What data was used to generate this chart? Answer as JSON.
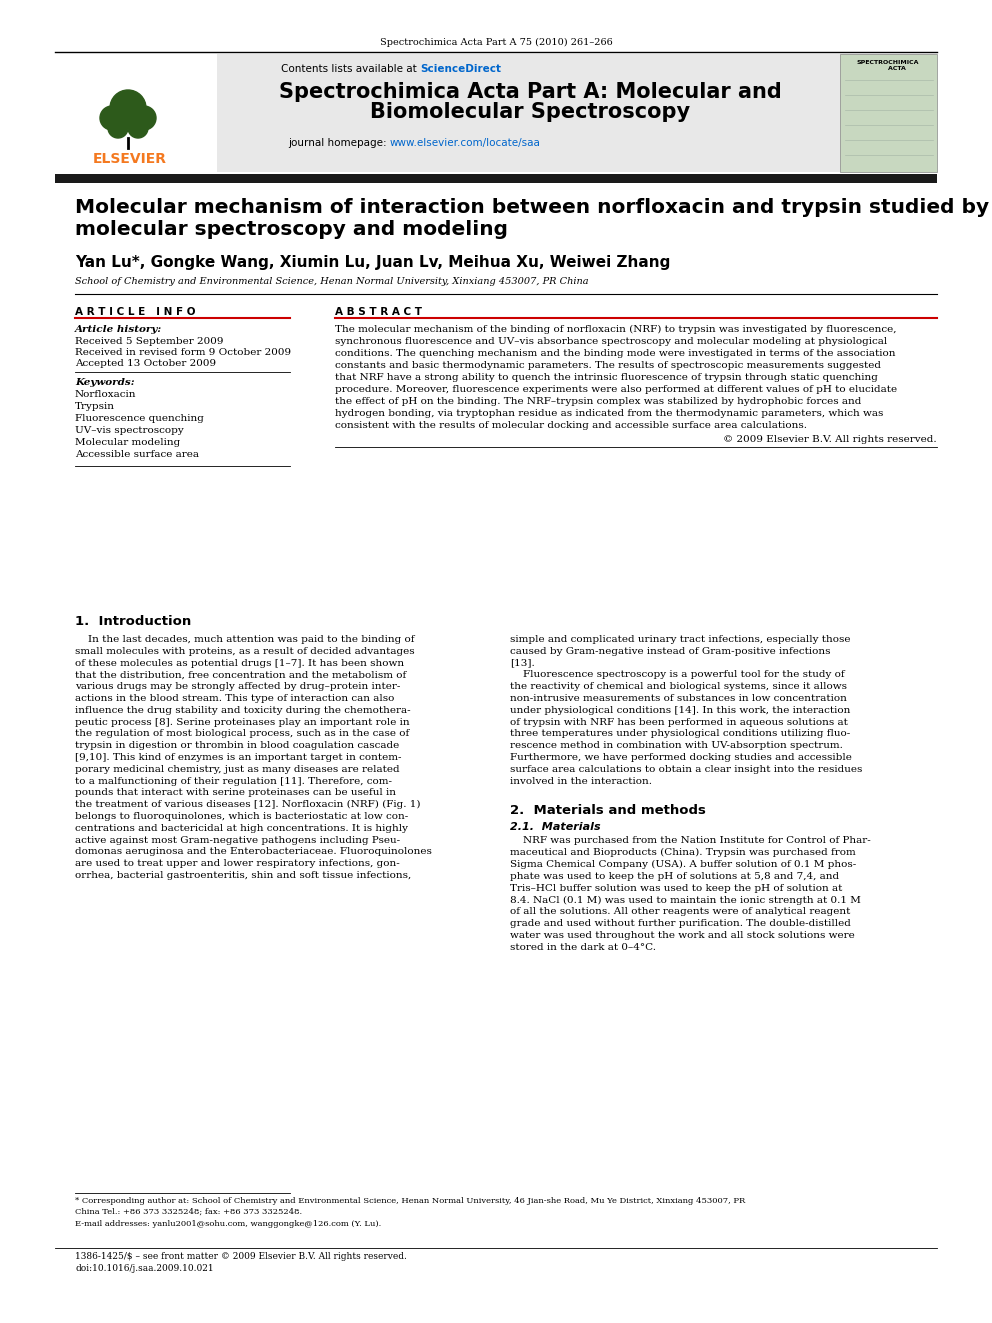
{
  "journal_ref": "Spectrochimica Acta Part A 75 (2010) 261–266",
  "journal_name_line1": "Spectrochimica Acta Part A: Molecular and",
  "journal_name_line2": "Biomolecular Spectroscopy",
  "paper_title_line1": "Molecular mechanism of interaction between norfloxacin and trypsin studied by",
  "paper_title_line2": "molecular spectroscopy and modeling",
  "authors": "Yan Lu*, Gongke Wang, Xiumin Lu, Juan Lv, Meihua Xu, Weiwei Zhang",
  "affiliation": "School of Chemistry and Environmental Science, Henan Normal University, Xinxiang 453007, PR China",
  "article_info_header": "A R T I C L E   I N F O",
  "abstract_header": "A B S T R A C T",
  "article_history_header": "Article history:",
  "received1": "Received 5 September 2009",
  "received_revised": "Received in revised form 9 October 2009",
  "accepted": "Accepted 13 October 2009",
  "keywords_header": "Keywords:",
  "keywords": [
    "Norfloxacin",
    "Trypsin",
    "Fluorescence quenching",
    "UV–vis spectroscopy",
    "Molecular modeling",
    "Accessible surface area"
  ],
  "abstract_lines": [
    "The molecular mechanism of the binding of norfloxacin (NRF) to trypsin was investigated by fluorescence,",
    "synchronous fluorescence and UV–vis absorbance spectroscopy and molecular modeling at physiological",
    "conditions. The quenching mechanism and the binding mode were investigated in terms of the association",
    "constants and basic thermodynamic parameters. The results of spectroscopic measurements suggested",
    "that NRF have a strong ability to quench the intrinsic fluorescence of trypsin through static quenching",
    "procedure. Moreover, fluorescence experiments were also performed at different values of pH to elucidate",
    "the effect of pH on the binding. The NRF–trypsin complex was stabilized by hydrophobic forces and",
    "hydrogen bonding, via tryptophan residue as indicated from the thermodynamic parameters, which was",
    "consistent with the results of molecular docking and accessible surface area calculations."
  ],
  "copyright": "© 2009 Elsevier B.V. All rights reserved.",
  "section1_header": "1.  Introduction",
  "intro_left_lines": [
    "    In the last decades, much attention was paid to the binding of",
    "small molecules with proteins, as a result of decided advantages",
    "of these molecules as potential drugs [1–7]. It has been shown",
    "that the distribution, free concentration and the metabolism of",
    "various drugs may be strongly affected by drug–protein inter-",
    "actions in the blood stream. This type of interaction can also",
    "influence the drug stability and toxicity during the chemothera-",
    "peutic process [8]. Serine proteinases play an important role in",
    "the regulation of most biological process, such as in the case of",
    "trypsin in digestion or thrombin in blood coagulation cascade",
    "[9,10]. This kind of enzymes is an important target in contem-",
    "porary medicinal chemistry, just as many diseases are related",
    "to a malfunctioning of their regulation [11]. Therefore, com-",
    "pounds that interact with serine proteinases can be useful in",
    "the treatment of various diseases [12]. Norfloxacin (NRF) (Fig. 1)",
    "belongs to fluoroquinolones, which is bacteriostatic at low con-",
    "centrations and bactericidal at high concentrations. It is highly",
    "active against most Gram-negative pathogens including Pseu-",
    "domonas aeruginosa and the Enterobacteriaceae. Fluoroquinolones",
    "are used to treat upper and lower respiratory infections, gon-",
    "orrhea, bacterial gastroenteritis, shin and soft tissue infections,"
  ],
  "intro_right_lines": [
    "simple and complicated urinary tract infections, especially those",
    "caused by Gram-negative instead of Gram-positive infections",
    "[13].",
    "    Fluorescence spectroscopy is a powerful tool for the study of",
    "the reactivity of chemical and biological systems, since it allows",
    "non-intrusive measurements of substances in low concentration",
    "under physiological conditions [14]. In this work, the interaction",
    "of trypsin with NRF has been performed in aqueous solutions at",
    "three temperatures under physiological conditions utilizing fluo-",
    "rescence method in combination with UV-absorption spectrum.",
    "Furthermore, we have performed docking studies and accessible",
    "surface area calculations to obtain a clear insight into the residues",
    "involved in the interaction."
  ],
  "section2_header": "2.  Materials and methods",
  "section21_header": "2.1.  Materials",
  "materials_lines": [
    "    NRF was purchased from the Nation Institute for Control of Phar-",
    "maceutical and Bioproducts (China). Trypsin was purchased from",
    "Sigma Chemical Company (USA). A buffer solution of 0.1 M phos-",
    "phate was used to keep the pH of solutions at 5,8 and 7,4, and",
    "Tris–HCl buffer solution was used to keep the pH of solution at",
    "8.4. NaCl (0.1 M) was used to maintain the ionic strength at 0.1 M",
    "of all the solutions. All other reagents were of analytical reagent",
    "grade and used without further purification. The double-distilled",
    "water was used throughout the work and all stock solutions were",
    "stored in the dark at 0–4°C."
  ],
  "footnote_star": "* Corresponding author at: School of Chemistry and Environmental Science, Henan Normal University, 46 Jian-she Road, Mu Ye District, Xinxiang 453007, PR",
  "footnote_star2": "China Tel.: +86 373 3325248; fax: +86 373 3325248.",
  "footnote_email": "E-mail addresses: yanlu2001@sohu.com, wanggongke@126.com (Y. Lu).",
  "footer_line1": "1386-1425/$ – see front matter © 2009 Elsevier B.V. All rights reserved.",
  "footer_line2": "doi:10.1016/j.saa.2009.10.021",
  "header_bg": "#e8e8e8",
  "elsevier_orange": "#f47920",
  "science_direct_blue": "#0066cc",
  "link_blue": "#0066cc",
  "dark_bar": "#1a1a1a",
  "cover_bg": "#c8d8c0"
}
